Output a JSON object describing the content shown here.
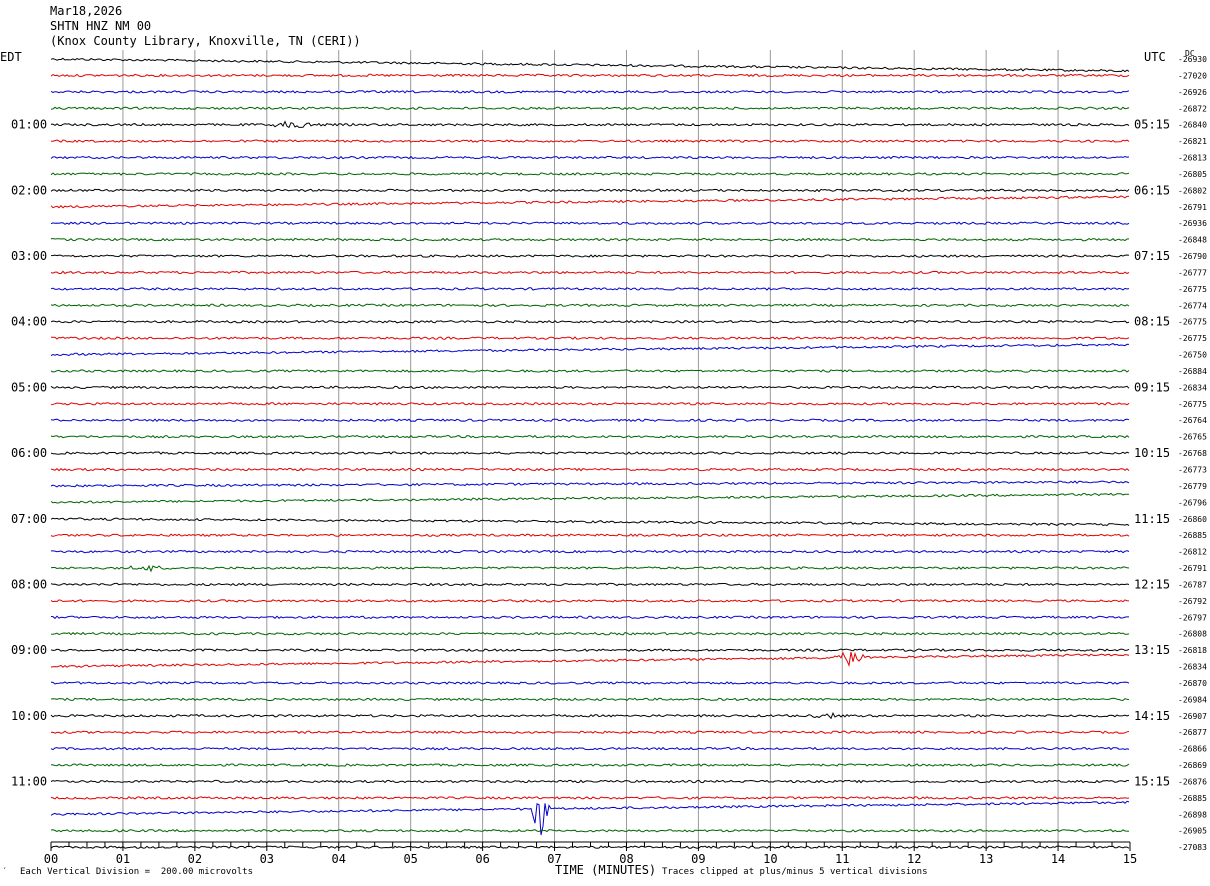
{
  "header": {
    "date": "Mar18,2026",
    "station": "SHTN HNZ NM 00",
    "location": "(Knox County Library, Knoxville, TN (CERI))"
  },
  "left_tz": "EDT",
  "right_tz": "UTC",
  "dc_label": "DC",
  "footer": {
    "scale": "Each Vertical Division =  200.00 microvolts",
    "clip": "Traces clipped at plus/minus 5 vertical divisions",
    "corner_mark": "′"
  },
  "colors": {
    "black": "#000000",
    "red": "#e00000",
    "blue": "#0000cc",
    "green": "#006400",
    "grid": "#999999"
  },
  "chart_data": {
    "type": "line",
    "xlabel": "TIME (MINUTES)",
    "xlim": [
      0,
      15
    ],
    "x_ticks": [
      "00",
      "01",
      "02",
      "03",
      "04",
      "05",
      "06",
      "07",
      "08",
      "09",
      "10",
      "11",
      "12",
      "13",
      "14",
      "15"
    ],
    "left_hour_labels": [
      "01:00",
      "02:00",
      "03:00",
      "04:00",
      "05:00",
      "06:00",
      "07:00",
      "08:00",
      "09:00",
      "10:00",
      "11:00"
    ],
    "right_hour_labels": [
      "05:15",
      "06:15",
      "07:15",
      "08:15",
      "09:15",
      "10:15",
      "11:15",
      "12:15",
      "13:15",
      "14:15",
      "15:15"
    ],
    "trace_colors": [
      "black",
      "red",
      "blue",
      "green"
    ],
    "dc_offsets": [
      -26930,
      -27020,
      -26926,
      -26872,
      -26840,
      -26821,
      -26813,
      -26805,
      -26802,
      -26791,
      -26936,
      -26848,
      -26790,
      -26777,
      -26775,
      -26774,
      -26775,
      -26775,
      -26750,
      -26884,
      -26834,
      -26775,
      -26764,
      -26765,
      -26768,
      -26773,
      -26779,
      -26796,
      -26860,
      -26885,
      -26812,
      -26791,
      -26787,
      -26792,
      -26797,
      -26808,
      -26818,
      -26834,
      -26870,
      -26984,
      -26907,
      -26877,
      -26866,
      -26869,
      -26876,
      -26885,
      -26898,
      -26905,
      -27083
    ],
    "events": [
      {
        "trace": 4,
        "minute": 3.4,
        "amp": 4,
        "dur": 0.4
      },
      {
        "trace": 31,
        "minute": 1.3,
        "amp": 4,
        "dur": 0.3
      },
      {
        "trace": 37,
        "minute": 11.1,
        "amp": 8,
        "dur": 0.3
      },
      {
        "trace": 46,
        "minute": 6.8,
        "amp": 28,
        "dur": 0.15
      },
      {
        "trace": 40,
        "minute": 10.8,
        "amp": 3,
        "dur": 0.3
      }
    ]
  }
}
